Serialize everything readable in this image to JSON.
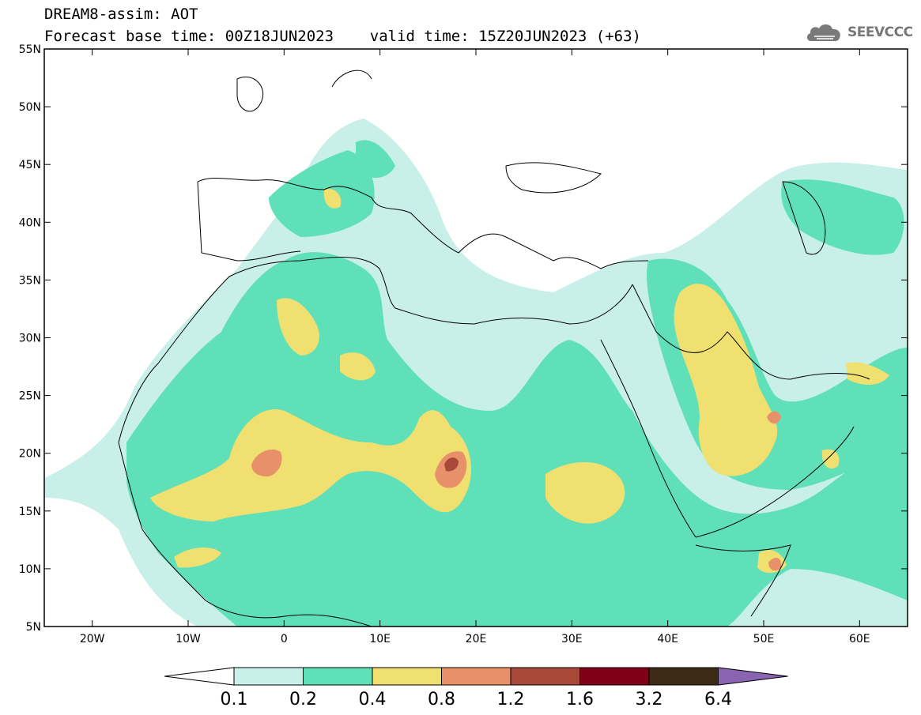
{
  "header": {
    "title_line1": "DREAM8-assim: AOT",
    "title_line2": "Forecast base time: 00Z18JUN2023    valid time: 15Z20JUN2023 (+63)",
    "logo_text": "SEEVCCC"
  },
  "map": {
    "lon_range": [
      -25,
      65
    ],
    "lat_range": [
      5,
      55
    ],
    "lat_ticks": [
      {
        "value": 55,
        "label": "55N"
      },
      {
        "value": 50,
        "label": "50N"
      },
      {
        "value": 45,
        "label": "45N"
      },
      {
        "value": 40,
        "label": "40N"
      },
      {
        "value": 35,
        "label": "35N"
      },
      {
        "value": 30,
        "label": "30N"
      },
      {
        "value": 25,
        "label": "25N"
      },
      {
        "value": 20,
        "label": "20N"
      },
      {
        "value": 15,
        "label": "15N"
      },
      {
        "value": 10,
        "label": "10N"
      },
      {
        "value": 5,
        "label": "5N"
      }
    ],
    "lon_ticks": [
      {
        "value": -20,
        "label": "20W"
      },
      {
        "value": -10,
        "label": "10W"
      },
      {
        "value": 0,
        "label": "0"
      },
      {
        "value": 10,
        "label": "10E"
      },
      {
        "value": 20,
        "label": "20E"
      },
      {
        "value": 30,
        "label": "30E"
      },
      {
        "value": 40,
        "label": "40E"
      },
      {
        "value": 50,
        "label": "50E"
      },
      {
        "value": 60,
        "label": "60E"
      }
    ]
  },
  "colorbar": {
    "colors": [
      "#c8f0e8",
      "#5fe0b8",
      "#f0e070",
      "#e8906a",
      "#a84838",
      "#800018",
      "#3c2a16",
      "#8a64b0"
    ],
    "under_color": "#ffffff",
    "labels": [
      "0.1",
      "0.2",
      "0.4",
      "0.8",
      "1.2",
      "1.6",
      "3.2",
      "6.4"
    ]
  },
  "colors": {
    "map_border": "#000000",
    "coastline": "#000000"
  }
}
